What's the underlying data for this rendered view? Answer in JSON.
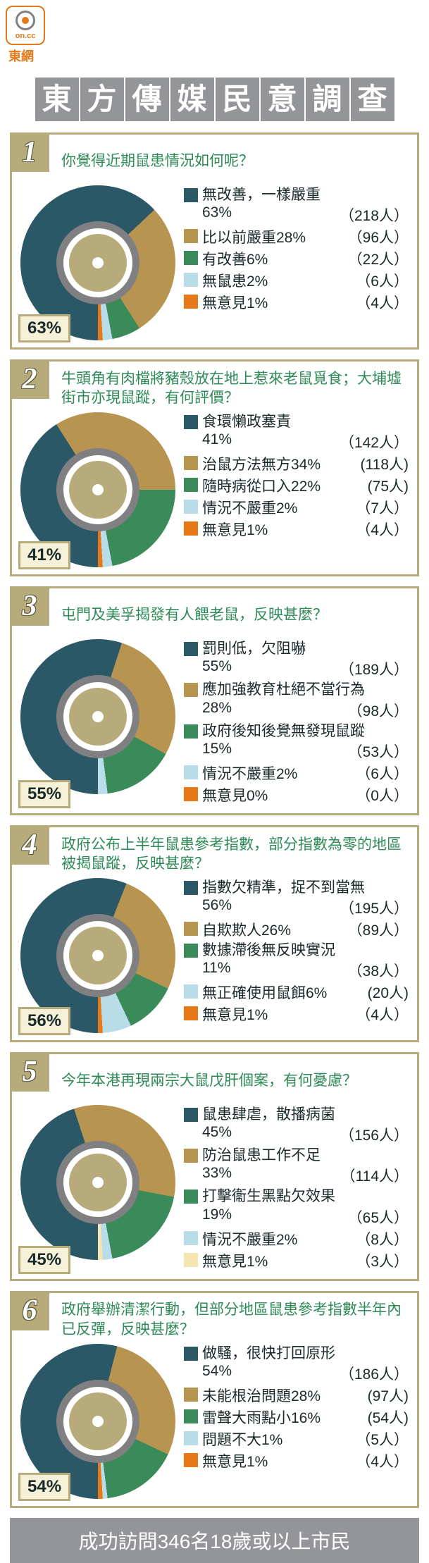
{
  "logo": {
    "text": "on.cc",
    "under": "東網"
  },
  "title_chars": [
    "東",
    "方",
    "傳",
    "媒",
    "民",
    "意",
    "調",
    "查"
  ],
  "colors": {
    "c1": "#2a5866",
    "c2": "#b7944f",
    "c3": "#3a8a5a",
    "c4": "#b8dce8",
    "c5": "#e67817",
    "c5alt": "#f5e5b0",
    "border": "#b7ab7b",
    "grey": "#939598",
    "ring": "#808083"
  },
  "questions": [
    {
      "num": "1",
      "q": "你覺得近期鼠患情況如何呢？",
      "main_pct": "63%",
      "slices": [
        63,
        28,
        6,
        2,
        1
      ],
      "slice_colors": [
        "#2a5866",
        "#b7944f",
        "#3a8a5a",
        "#b8dce8",
        "#e67817"
      ],
      "legend": [
        {
          "color": "#2a5866",
          "label": "無改善，一樣嚴重",
          "pct": "63%",
          "count": "（218人）",
          "two_line": true
        },
        {
          "color": "#b7944f",
          "label": "比以前嚴重28%",
          "count": "（96人）"
        },
        {
          "color": "#3a8a5a",
          "label": "有改善6%",
          "count": "（22人）"
        },
        {
          "color": "#b8dce8",
          "label": "無鼠患2%",
          "count": "（6人）"
        },
        {
          "color": "#e67817",
          "label": "無意見1%",
          "count": "（4人）"
        }
      ]
    },
    {
      "num": "2",
      "q": "牛頭角有肉檔將豬殼放在地上惹來老鼠覓食；大埔墟街市亦現鼠蹤，有何評價？",
      "main_pct": "41%",
      "slices": [
        41,
        34,
        22,
        2,
        1
      ],
      "slice_colors": [
        "#2a5866",
        "#b7944f",
        "#3a8a5a",
        "#b8dce8",
        "#e67817"
      ],
      "legend": [
        {
          "color": "#2a5866",
          "label": "食環懶政塞責",
          "pct": "41%",
          "count": "（142人）",
          "two_line": true
        },
        {
          "color": "#b7944f",
          "label": "治鼠方法無方34%",
          "count": "(118人)"
        },
        {
          "color": "#3a8a5a",
          "label": "隨時病從口入22%",
          "count": "(75人)"
        },
        {
          "color": "#b8dce8",
          "label": "情況不嚴重2%",
          "count": "（7人）"
        },
        {
          "color": "#e67817",
          "label": "無意見1%",
          "count": "（4人）"
        }
      ]
    },
    {
      "num": "3",
      "q": "屯門及美孚揭發有人餵老鼠，反映甚麼？",
      "main_pct": "55%",
      "slices": [
        55,
        28,
        15,
        2,
        0
      ],
      "slice_colors": [
        "#2a5866",
        "#b7944f",
        "#3a8a5a",
        "#b8dce8",
        "#e67817"
      ],
      "legend": [
        {
          "color": "#2a5866",
          "label": "罰則低，欠阻嚇",
          "pct": "55%",
          "count": "（189人）",
          "two_line": true
        },
        {
          "color": "#b7944f",
          "label": "應加強教育杜絕不當行為",
          "pct": "28%",
          "count": "（98人）",
          "two_line": true
        },
        {
          "color": "#3a8a5a",
          "label": "政府後知後覺無發現鼠蹤",
          "pct": "15%",
          "count": "（53人）",
          "two_line": true
        },
        {
          "color": "#b8dce8",
          "label": "情況不嚴重2%",
          "count": "（6人）"
        },
        {
          "color": "#e67817",
          "label": "無意見0%",
          "count": "（0人）"
        }
      ]
    },
    {
      "num": "4",
      "q": "政府公布上半年鼠患參考指數，部分指數為零的地區被揭鼠蹤，反映甚麼？",
      "main_pct": "56%",
      "slices": [
        56,
        26,
        11,
        6,
        1
      ],
      "slice_colors": [
        "#2a5866",
        "#b7944f",
        "#3a8a5a",
        "#b8dce8",
        "#e67817"
      ],
      "legend": [
        {
          "color": "#2a5866",
          "label": "指數欠精準，捉不到當無",
          "pct": "56%",
          "count": "（195人）",
          "two_line": true
        },
        {
          "color": "#b7944f",
          "label": "自欺欺人26%",
          "count": "（89人）"
        },
        {
          "color": "#3a8a5a",
          "label": "數據滯後無反映實況",
          "pct": "11%",
          "count": "（38人）",
          "two_line": true
        },
        {
          "color": "#b8dce8",
          "label": "無正確使用鼠餌6%",
          "count": "(20人)"
        },
        {
          "color": "#e67817",
          "label": "無意見1%",
          "count": "（4人）"
        }
      ]
    },
    {
      "num": "5",
      "q": "今年本港再現兩宗大鼠戊肝個案，有何憂慮？",
      "main_pct": "45%",
      "slices": [
        45,
        33,
        19,
        2,
        1
      ],
      "slice_colors": [
        "#2a5866",
        "#b7944f",
        "#3a8a5a",
        "#b8dce8",
        "#f5e5b0"
      ],
      "legend": [
        {
          "color": "#2a5866",
          "label": "鼠患肆虐，散播病菌",
          "pct": "45%",
          "count": "（156人）",
          "two_line": true
        },
        {
          "color": "#b7944f",
          "label": "防治鼠患工作不足",
          "pct": "33%",
          "count": "（114人）",
          "two_line": true
        },
        {
          "color": "#3a8a5a",
          "label": "打擊衞生黑點欠效果",
          "pct": "19%",
          "count": "（65人）",
          "two_line": true
        },
        {
          "color": "#b8dce8",
          "label": "情況不嚴重2%",
          "count": "（8人）"
        },
        {
          "color": "#f5e5b0",
          "label": "無意見1%",
          "count": "（3人）"
        }
      ]
    },
    {
      "num": "6",
      "q": "政府舉辦清潔行動，但部分地區鼠患參考指數半年內已反彈，反映甚麼？",
      "main_pct": "54%",
      "slices": [
        54,
        28,
        16,
        1,
        1
      ],
      "slice_colors": [
        "#2a5866",
        "#b7944f",
        "#3a8a5a",
        "#b8dce8",
        "#e67817"
      ],
      "legend": [
        {
          "color": "#2a5866",
          "label": "做騷，很快打回原形",
          "pct": "54%",
          "count": "（186人）",
          "two_line": true
        },
        {
          "color": "#b7944f",
          "label": "未能根治問題28%",
          "count": "(97人)"
        },
        {
          "color": "#3a8a5a",
          "label": "雷聲大雨點小16%",
          "count": "(54人)"
        },
        {
          "color": "#b8dce8",
          "label": "問題不大1%",
          "count": "（5人）"
        },
        {
          "color": "#e67817",
          "label": "無意見1%",
          "count": "（4人）"
        }
      ]
    }
  ],
  "footer": "成功訪問346名18歲或以上市民"
}
